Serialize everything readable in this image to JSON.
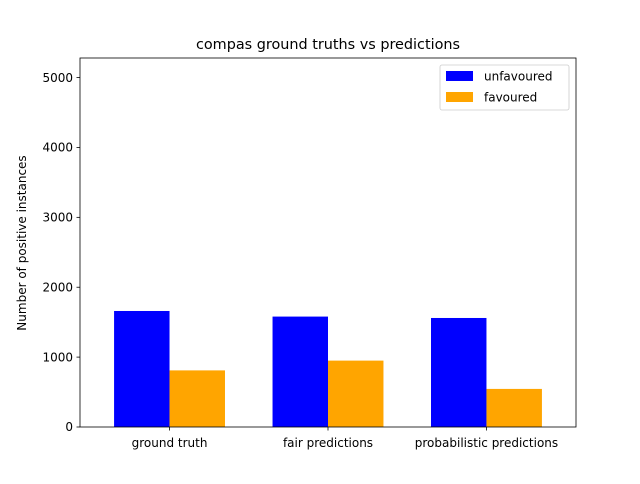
{
  "chart_data": {
    "type": "bar",
    "title": "compas ground truths vs predictions",
    "xlabel": "",
    "ylabel": "Number of positive instances",
    "categories": [
      "ground truth",
      "fair predictions",
      "probabilistic predictions"
    ],
    "series": [
      {
        "name": "unfavoured",
        "color": "#0000ff",
        "values": [
          1660,
          1580,
          1560
        ]
      },
      {
        "name": "favoured",
        "color": "#ffa500",
        "values": [
          810,
          950,
          545
        ]
      }
    ],
    "ylim": [
      0,
      5280
    ],
    "yticks": [
      0,
      1000,
      2000,
      3000,
      4000,
      5000
    ],
    "ytick_labels": [
      "0",
      "1000",
      "2000",
      "3000",
      "4000",
      "5000"
    ],
    "grid": false,
    "legend_position": "top-right"
  }
}
